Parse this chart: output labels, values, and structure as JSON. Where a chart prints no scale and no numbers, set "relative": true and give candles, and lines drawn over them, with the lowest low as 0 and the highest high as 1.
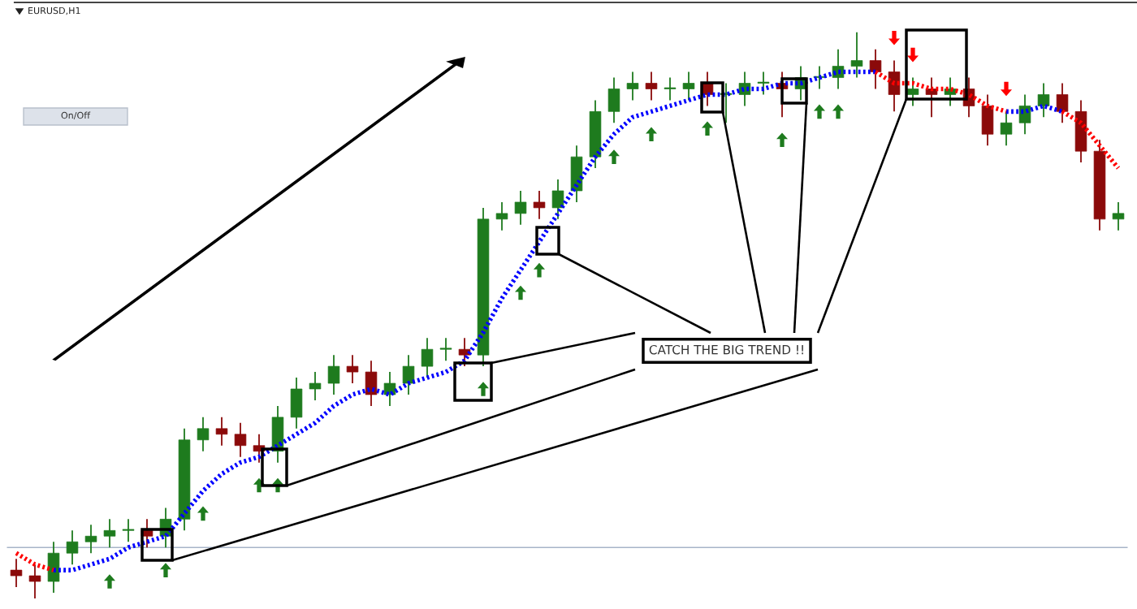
{
  "chart_data": {
    "type": "candlestick",
    "title": "EURUSD,H1",
    "relative": true,
    "categories": [
      null,
      null,
      null,
      null,
      null,
      null,
      null,
      null,
      null,
      null,
      null,
      null,
      null,
      null,
      null,
      null,
      null,
      null,
      null,
      null,
      null,
      null,
      null,
      null,
      null,
      null,
      null,
      null,
      null,
      null,
      null,
      null,
      null,
      null,
      null,
      null,
      null,
      null,
      null,
      null,
      null,
      null,
      null,
      null,
      null,
      null,
      null,
      null,
      null,
      null,
      null,
      null,
      null,
      null,
      null,
      null,
      null,
      null,
      null,
      null
    ],
    "ohlc": [
      [
        0.05,
        0.07,
        0.02,
        0.04
      ],
      [
        0.04,
        0.06,
        0,
        0.03
      ],
      [
        0.03,
        0.1,
        0.01,
        0.08
      ],
      [
        0.08,
        0.12,
        0.06,
        0.1
      ],
      [
        0.1,
        0.13,
        0.08,
        0.11
      ],
      [
        0.11,
        0.14,
        0.09,
        0.12
      ],
      [
        0.12,
        0.14,
        0.1,
        0.12
      ],
      [
        0.12,
        0.14,
        0.09,
        0.11
      ],
      [
        0.11,
        0.16,
        0.09,
        0.14
      ],
      [
        0.14,
        0.3,
        0.12,
        0.28
      ],
      [
        0.28,
        0.32,
        0.26,
        0.3
      ],
      [
        0.3,
        0.32,
        0.27,
        0.29
      ],
      [
        0.29,
        0.31,
        0.25,
        0.27
      ],
      [
        0.27,
        0.29,
        0.24,
        0.26
      ],
      [
        0.26,
        0.34,
        0.24,
        0.32
      ],
      [
        0.32,
        0.39,
        0.3,
        0.37
      ],
      [
        0.37,
        0.4,
        0.35,
        0.38
      ],
      [
        0.38,
        0.43,
        0.36,
        0.41
      ],
      [
        0.41,
        0.43,
        0.38,
        0.4
      ],
      [
        0.4,
        0.42,
        0.34,
        0.36
      ],
      [
        0.36,
        0.4,
        0.34,
        0.38
      ],
      [
        0.38,
        0.43,
        0.36,
        0.41
      ],
      [
        0.41,
        0.46,
        0.39,
        0.44
      ],
      [
        0.44,
        0.46,
        0.42,
        0.44
      ],
      [
        0.44,
        0.46,
        0.41,
        0.43
      ],
      [
        0.43,
        0.69,
        0.41,
        0.67
      ],
      [
        0.67,
        0.7,
        0.65,
        0.68
      ],
      [
        0.68,
        0.72,
        0.66,
        0.7
      ],
      [
        0.7,
        0.72,
        0.67,
        0.69
      ],
      [
        0.69,
        0.74,
        0.67,
        0.72
      ],
      [
        0.72,
        0.8,
        0.7,
        0.78
      ],
      [
        0.78,
        0.88,
        0.76,
        0.86
      ],
      [
        0.86,
        0.92,
        0.84,
        0.9
      ],
      [
        0.9,
        0.93,
        0.88,
        0.91
      ],
      [
        0.91,
        0.93,
        0.88,
        0.9
      ],
      [
        0.9,
        0.92,
        0.88,
        0.9
      ],
      [
        0.9,
        0.93,
        0.88,
        0.91
      ],
      [
        0.91,
        0.93,
        0.87,
        0.89
      ],
      [
        0.89,
        0.91,
        0.84,
        0.89
      ],
      [
        0.89,
        0.93,
        0.87,
        0.91
      ],
      [
        0.91,
        0.93,
        0.89,
        0.91
      ],
      [
        0.91,
        0.93,
        0.85,
        0.9
      ],
      [
        0.9,
        0.94,
        0.88,
        0.92
      ],
      [
        0.92,
        0.94,
        0.9,
        0.92
      ],
      [
        0.92,
        0.97,
        0.9,
        0.94
      ],
      [
        0.94,
        1.0,
        0.92,
        0.95
      ],
      [
        0.95,
        0.97,
        0.9,
        0.93
      ],
      [
        0.93,
        0.95,
        0.86,
        0.89
      ],
      [
        0.89,
        0.92,
        0.87,
        0.9
      ],
      [
        0.9,
        0.92,
        0.85,
        0.89
      ],
      [
        0.89,
        0.92,
        0.87,
        0.9
      ],
      [
        0.9,
        0.92,
        0.85,
        0.87
      ],
      [
        0.87,
        0.89,
        0.8,
        0.82
      ],
      [
        0.82,
        0.86,
        0.8,
        0.84
      ],
      [
        0.84,
        0.89,
        0.82,
        0.87
      ],
      [
        0.87,
        0.91,
        0.85,
        0.89
      ],
      [
        0.89,
        0.91,
        0.84,
        0.86
      ],
      [
        0.86,
        0.88,
        0.77,
        0.79
      ],
      [
        0.79,
        0.81,
        0.65,
        0.67
      ],
      [
        0.67,
        0.7,
        0.65,
        0.68
      ]
    ],
    "colors": [
      "#8b0a0a",
      "#8b0a0a",
      "#1e7b1e",
      "#1e7b1e",
      "#1e7b1e",
      "#1e7b1e",
      "#1e7b1e",
      "#8b0a0a",
      "#1e7b1e",
      "#1e7b1e",
      "#1e7b1e",
      "#8b0a0a",
      "#8b0a0a",
      "#8b0a0a",
      "#1e7b1e",
      "#1e7b1e",
      "#1e7b1e",
      "#1e7b1e",
      "#8b0a0a",
      "#8b0a0a",
      "#1e7b1e",
      "#1e7b1e",
      "#1e7b1e",
      "#1e7b1e",
      "#8b0a0a",
      "#1e7b1e",
      "#1e7b1e",
      "#1e7b1e",
      "#8b0a0a",
      "#1e7b1e",
      "#1e7b1e",
      "#1e7b1e",
      "#1e7b1e",
      "#1e7b1e",
      "#8b0a0a",
      "#1e7b1e",
      "#1e7b1e",
      "#8b0a0a",
      "#1e7b1e",
      "#1e7b1e",
      "#1e7b1e",
      "#8b0a0a",
      "#1e7b1e",
      "#1e7b1e",
      "#1e7b1e",
      "#1e7b1e",
      "#8b0a0a",
      "#8b0a0a",
      "#1e7b1e",
      "#8b0a0a",
      "#1e7b1e",
      "#8b0a0a",
      "#8b0a0a",
      "#1e7b1e",
      "#1e7b1e",
      "#1e7b1e",
      "#8b0a0a",
      "#8b0a0a",
      "#8b0a0a",
      "#1e7b1e"
    ],
    "series": [
      {
        "type": "line",
        "color": "#0000ff",
        "line_style": "dotted",
        "values": [
          null,
          null,
          0.05,
          0.05,
          0.06,
          0.07,
          0.09,
          0.1,
          0.11,
          0.15,
          0.19,
          0.22,
          0.24,
          0.25,
          0.27,
          0.29,
          0.31,
          0.34,
          0.36,
          0.37,
          0.36,
          0.38,
          0.39,
          0.4,
          0.42,
          0.47,
          0.53,
          0.58,
          0.63,
          0.68,
          0.73,
          0.78,
          0.82,
          0.85,
          0.86,
          0.87,
          0.88,
          0.89,
          0.89,
          0.9,
          0.9,
          0.91,
          0.91,
          0.92,
          0.93,
          0.93,
          0.93,
          null,
          null,
          null,
          null,
          null,
          null,
          0.86,
          0.86,
          0.87,
          0.86,
          null,
          null,
          null
        ]
      },
      {
        "type": "line",
        "color": "#ff0000",
        "line_style": "dotted",
        "values": [
          0.08,
          0.06,
          0.05,
          null,
          null,
          null,
          null,
          null,
          null,
          null,
          null,
          null,
          null,
          null,
          null,
          null,
          null,
          null,
          null,
          null,
          null,
          null,
          null,
          null,
          null,
          null,
          null,
          null,
          null,
          null,
          null,
          null,
          null,
          null,
          null,
          null,
          null,
          null,
          null,
          null,
          null,
          null,
          null,
          null,
          null,
          null,
          0.93,
          0.91,
          0.91,
          0.9,
          0.9,
          0.89,
          0.87,
          0.86,
          null,
          null,
          0.86,
          0.84,
          0.8,
          0.76
        ]
      },
      {
        "type": "scatter",
        "color": "#1e7b1e",
        "marker": "triangle",
        "values": [
          null,
          null,
          null,
          null,
          null,
          0.03,
          null,
          null,
          0.05,
          null,
          0.15,
          null,
          null,
          0.2,
          0.2,
          null,
          null,
          null,
          null,
          null,
          null,
          null,
          null,
          null,
          null,
          0.37,
          null,
          0.54,
          0.58,
          null,
          null,
          null,
          0.78,
          null,
          0.82,
          null,
          null,
          0.83,
          null,
          null,
          null,
          0.81,
          null,
          0.86,
          0.86,
          null,
          null,
          null,
          null,
          null,
          null,
          null,
          null,
          null,
          null,
          null,
          null,
          null,
          null,
          null
        ]
      },
      {
        "type": "scatter",
        "color": "#ff0000",
        "marker": "triangle",
        "values": [
          null,
          null,
          null,
          null,
          null,
          null,
          null,
          null,
          null,
          null,
          null,
          null,
          null,
          null,
          null,
          null,
          null,
          null,
          null,
          null,
          null,
          null,
          null,
          null,
          null,
          null,
          null,
          null,
          null,
          null,
          null,
          null,
          null,
          null,
          null,
          null,
          null,
          null,
          null,
          null,
          null,
          null,
          null,
          null,
          null,
          null,
          null,
          0.99,
          0.96,
          null,
          null,
          null,
          null,
          0.9,
          null,
          null,
          null,
          null,
          null,
          null
        ]
      }
    ],
    "ref_lines": [
      {
        "axis": "y",
        "value": 0.09,
        "color": "#a7b4c8"
      }
    ],
    "annotations": [
      "On/Off",
      "CATCH THE BIG TREND !!"
    ]
  }
}
